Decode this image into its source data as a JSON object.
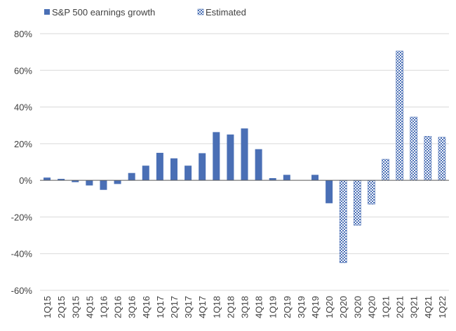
{
  "chart_data": {
    "type": "bar",
    "title": "",
    "xlabel": "",
    "ylabel": "",
    "ylim": [
      -60,
      80
    ],
    "yticks": [
      -60,
      -40,
      -20,
      0,
      20,
      40,
      60,
      80
    ],
    "ytick_labels": [
      "-60%",
      "-40%",
      "-20%",
      "0%",
      "20%",
      "40%",
      "60%",
      "80%"
    ],
    "grid": true,
    "legend_position": "top-left",
    "categories": [
      "1Q15",
      "2Q15",
      "3Q15",
      "4Q15",
      "1Q16",
      "2Q16",
      "3Q16",
      "4Q16",
      "1Q17",
      "2Q17",
      "3Q17",
      "4Q17",
      "1Q18",
      "2Q18",
      "3Q18",
      "4Q18",
      "1Q19",
      "2Q19",
      "3Q19",
      "4Q19",
      "1Q20",
      "2Q20",
      "3Q20",
      "4Q20",
      "1Q21",
      "2Q21",
      "3Q21",
      "4Q21",
      "1Q22"
    ],
    "series": [
      {
        "name": "S&P 500 earnings growth",
        "style": "solid",
        "color": "#4a6fb5",
        "values": [
          1.5,
          0.8,
          -1.0,
          -2.8,
          -5.2,
          -2.0,
          4.0,
          8.0,
          15.0,
          12.0,
          8.0,
          14.8,
          26.3,
          25.0,
          28.3,
          17.0,
          1.2,
          3.0,
          null,
          3.0,
          -12.5,
          null,
          null,
          null,
          null,
          null,
          null,
          null,
          null
        ]
      },
      {
        "name": "Estimated",
        "style": "checkered",
        "color": "#4a6fb5",
        "values": [
          null,
          null,
          null,
          null,
          null,
          null,
          null,
          null,
          null,
          null,
          null,
          null,
          null,
          null,
          null,
          null,
          null,
          null,
          null,
          null,
          null,
          -45.0,
          -24.5,
          -13.0,
          11.5,
          70.5,
          34.5,
          24.0,
          23.5
        ]
      }
    ]
  },
  "colors": {
    "bar": "#4a6fb5",
    "grid": "#d9d9d9",
    "text": "#404040"
  }
}
